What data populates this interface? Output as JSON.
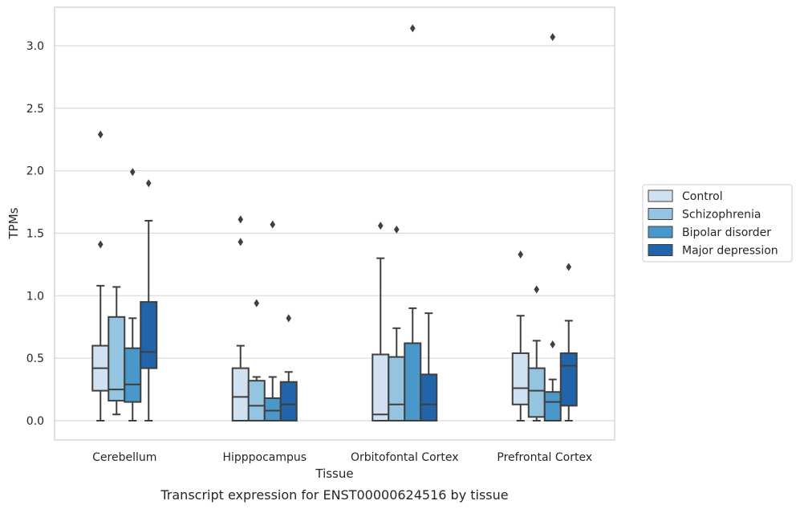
{
  "chart_data": {
    "type": "box",
    "caption": "Transcript expression for ENST00000624516 by tissue",
    "xlabel": "Tissue",
    "ylabel": "TPMs",
    "ylim": [
      -0.15,
      3.3
    ],
    "yticks": [
      0.0,
      0.5,
      1.0,
      1.5,
      2.0,
      2.5,
      3.0
    ],
    "ytick_labels": [
      "0.0",
      "0.5",
      "1.0",
      "1.5",
      "2.0",
      "2.5",
      "3.0"
    ],
    "grid": "horizontal",
    "legend_position": "right",
    "categories": [
      "Cerebellum",
      "Hipppocampus",
      "Orbitofontal Cortex",
      "Prefrontal Cortex"
    ],
    "series": [
      {
        "name": "Control",
        "color": "#d0e1f2",
        "boxes": [
          {
            "whislo": 0.0,
            "q1": 0.24,
            "med": 0.42,
            "q3": 0.6,
            "whishi": 1.08,
            "fliers": [
              1.41,
              2.29
            ]
          },
          {
            "whislo": 0.0,
            "q1": 0.0,
            "med": 0.19,
            "q3": 0.42,
            "whishi": 0.6,
            "fliers": [
              1.43,
              1.61
            ]
          },
          {
            "whislo": 0.0,
            "q1": 0.0,
            "med": 0.05,
            "q3": 0.53,
            "whishi": 1.3,
            "fliers": [
              1.56
            ]
          },
          {
            "whislo": 0.0,
            "q1": 0.13,
            "med": 0.26,
            "q3": 0.54,
            "whishi": 0.84,
            "fliers": [
              1.33
            ]
          }
        ]
      },
      {
        "name": "Schizophrenia",
        "color": "#94c4df",
        "boxes": [
          {
            "whislo": 0.05,
            "q1": 0.16,
            "med": 0.25,
            "q3": 0.83,
            "whishi": 1.07,
            "fliers": []
          },
          {
            "whislo": 0.0,
            "q1": 0.0,
            "med": 0.12,
            "q3": 0.32,
            "whishi": 0.35,
            "fliers": [
              0.94
            ]
          },
          {
            "whislo": 0.0,
            "q1": 0.0,
            "med": 0.13,
            "q3": 0.51,
            "whishi": 0.74,
            "fliers": [
              1.53
            ]
          },
          {
            "whislo": 0.0,
            "q1": 0.03,
            "med": 0.24,
            "q3": 0.42,
            "whishi": 0.64,
            "fliers": [
              1.05
            ]
          }
        ]
      },
      {
        "name": "Bipolar disorder",
        "color": "#4a98c9",
        "boxes": [
          {
            "whislo": 0.0,
            "q1": 0.15,
            "med": 0.29,
            "q3": 0.58,
            "whishi": 0.82,
            "fliers": [
              1.99
            ]
          },
          {
            "whislo": 0.0,
            "q1": 0.0,
            "med": 0.08,
            "q3": 0.18,
            "whishi": 0.35,
            "fliers": [
              1.57
            ]
          },
          {
            "whislo": 0.0,
            "q1": 0.0,
            "med": 0.0,
            "q3": 0.62,
            "whishi": 0.9,
            "fliers": [
              3.14
            ]
          },
          {
            "whislo": 0.0,
            "q1": 0.0,
            "med": 0.15,
            "q3": 0.23,
            "whishi": 0.33,
            "fliers": [
              0.61,
              3.07
            ]
          }
        ]
      },
      {
        "name": "Major depression",
        "color": "#2264a9",
        "boxes": [
          {
            "whislo": 0.0,
            "q1": 0.42,
            "med": 0.55,
            "q3": 0.95,
            "whishi": 1.6,
            "fliers": [
              1.9
            ]
          },
          {
            "whislo": 0.0,
            "q1": 0.0,
            "med": 0.13,
            "q3": 0.31,
            "whishi": 0.39,
            "fliers": [
              0.82
            ]
          },
          {
            "whislo": 0.0,
            "q1": 0.0,
            "med": 0.13,
            "q3": 0.37,
            "whishi": 0.86,
            "fliers": []
          },
          {
            "whislo": 0.0,
            "q1": 0.12,
            "med": 0.44,
            "q3": 0.54,
            "whishi": 0.8,
            "fliers": [
              1.23
            ]
          }
        ]
      }
    ]
  }
}
